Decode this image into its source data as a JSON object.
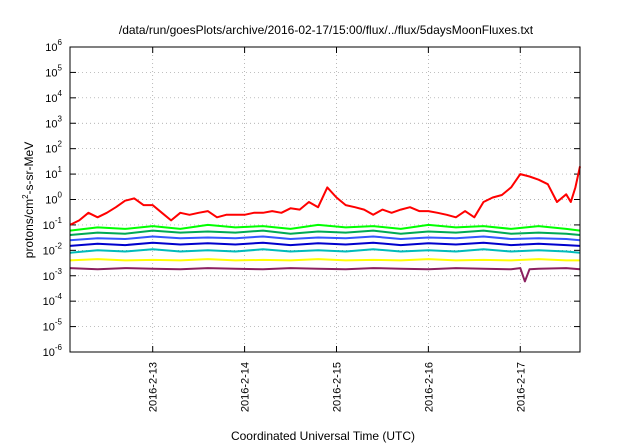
{
  "chart_data": {
    "type": "line",
    "title": "/data/run/goesPlots/archive/2016-02-17/15:00/flux/../flux/5daysMoonFluxes.txt",
    "xlabel": "Coordinated Universal Time (UTC)",
    "ylabel_parts": [
      "protons/cm",
      "2",
      "-s-sr-MeV"
    ],
    "y_scale": "log",
    "ylim": [
      1e-06,
      1000000.0
    ],
    "y_ticks": [
      {
        "base": "10",
        "exp": "-6",
        "value": 1e-06
      },
      {
        "base": "10",
        "exp": "-5",
        "value": 1e-05
      },
      {
        "base": "10",
        "exp": "-4",
        "value": 0.0001
      },
      {
        "base": "10",
        "exp": "-3",
        "value": 0.001
      },
      {
        "base": "10",
        "exp": "-2",
        "value": 0.01
      },
      {
        "base": "10",
        "exp": "-1",
        "value": 0.1
      },
      {
        "base": "10",
        "exp": "0",
        "value": 1.0
      },
      {
        "base": "10",
        "exp": "1",
        "value": 10.0
      },
      {
        "base": "10",
        "exp": "2",
        "value": 100.0
      },
      {
        "base": "10",
        "exp": "3",
        "value": 1000.0
      },
      {
        "base": "10",
        "exp": "4",
        "value": 10000.0
      },
      {
        "base": "10",
        "exp": "5",
        "value": 100000.0
      },
      {
        "base": "10",
        "exp": "6",
        "value": 1000000.0
      }
    ],
    "xlim_days": [
      -0.9,
      4.65
    ],
    "x_ticks": [
      {
        "label": "2016-2-13",
        "day": 0
      },
      {
        "label": "2016-2-14",
        "day": 1
      },
      {
        "label": "2016-2-15",
        "day": 2
      },
      {
        "label": "2016-2-16",
        "day": 3
      },
      {
        "label": "2016-2-17",
        "day": 4
      }
    ],
    "grid": true,
    "series": [
      {
        "color": "#ff0000",
        "x": [
          -0.9,
          -0.8,
          -0.7,
          -0.6,
          -0.5,
          -0.4,
          -0.3,
          -0.2,
          -0.1,
          0,
          0.1,
          0.2,
          0.3,
          0.4,
          0.5,
          0.6,
          0.7,
          0.8,
          0.9,
          1,
          1.1,
          1.2,
          1.3,
          1.4,
          1.5,
          1.6,
          1.7,
          1.8,
          1.9,
          2,
          2.1,
          2.2,
          2.3,
          2.4,
          2.5,
          2.6,
          2.7,
          2.8,
          2.9,
          3,
          3.1,
          3.2,
          3.3,
          3.4,
          3.5,
          3.6,
          3.7,
          3.8,
          3.9,
          4,
          4.1,
          4.2,
          4.3,
          4.4,
          4.5,
          4.55,
          4.6,
          4.65
        ],
        "y": [
          0.1,
          0.15,
          0.3,
          0.2,
          0.3,
          0.5,
          0.9,
          1.1,
          0.6,
          0.6,
          0.3,
          0.15,
          0.3,
          0.25,
          0.3,
          0.35,
          0.2,
          0.25,
          0.25,
          0.25,
          0.3,
          0.3,
          0.35,
          0.3,
          0.45,
          0.4,
          0.8,
          0.5,
          3,
          1.2,
          0.6,
          0.5,
          0.4,
          0.25,
          0.4,
          0.3,
          0.4,
          0.5,
          0.35,
          0.35,
          0.3,
          0.25,
          0.2,
          0.35,
          0.2,
          0.8,
          1.2,
          1.5,
          3,
          10,
          8,
          6,
          4,
          0.8,
          1.6,
          0.8,
          3,
          20
        ]
      },
      {
        "color": "#00ff00",
        "x": [
          -0.9,
          -0.6,
          -0.3,
          0,
          0.3,
          0.6,
          0.9,
          1.2,
          1.5,
          1.8,
          2.1,
          2.4,
          2.7,
          3,
          3.3,
          3.6,
          3.9,
          4.2,
          4.5,
          4.65
        ],
        "y": [
          0.06,
          0.08,
          0.07,
          0.09,
          0.07,
          0.1,
          0.08,
          0.09,
          0.07,
          0.1,
          0.08,
          0.09,
          0.07,
          0.1,
          0.08,
          0.09,
          0.07,
          0.09,
          0.07,
          0.06
        ]
      },
      {
        "color": "#00aa55",
        "x": [
          -0.9,
          -0.6,
          -0.3,
          0,
          0.3,
          0.6,
          0.9,
          1.2,
          1.5,
          1.8,
          2.1,
          2.4,
          2.7,
          3,
          3.3,
          3.6,
          3.9,
          4.2,
          4.5,
          4.65
        ],
        "y": [
          0.04,
          0.05,
          0.045,
          0.06,
          0.05,
          0.055,
          0.05,
          0.06,
          0.045,
          0.055,
          0.05,
          0.06,
          0.045,
          0.055,
          0.05,
          0.06,
          0.045,
          0.05,
          0.045,
          0.04
        ]
      },
      {
        "color": "#3355ff",
        "x": [
          -0.9,
          -0.6,
          -0.3,
          0,
          0.3,
          0.6,
          0.9,
          1.2,
          1.5,
          1.8,
          2.1,
          2.4,
          2.7,
          3,
          3.3,
          3.6,
          3.9,
          4.2,
          4.5,
          4.65
        ],
        "y": [
          0.025,
          0.03,
          0.028,
          0.035,
          0.03,
          0.032,
          0.03,
          0.035,
          0.028,
          0.032,
          0.03,
          0.035,
          0.028,
          0.032,
          0.03,
          0.035,
          0.028,
          0.03,
          0.028,
          0.025
        ]
      },
      {
        "color": "#0000cc",
        "x": [
          -0.9,
          -0.6,
          -0.3,
          0,
          0.3,
          0.6,
          0.9,
          1.2,
          1.5,
          1.8,
          2.1,
          2.4,
          2.7,
          3,
          3.3,
          3.6,
          3.9,
          4.2,
          4.5,
          4.65
        ],
        "y": [
          0.015,
          0.018,
          0.016,
          0.02,
          0.017,
          0.019,
          0.017,
          0.02,
          0.016,
          0.019,
          0.017,
          0.02,
          0.016,
          0.019,
          0.017,
          0.02,
          0.016,
          0.018,
          0.016,
          0.015
        ]
      },
      {
        "color": "#00bbbb",
        "x": [
          -0.9,
          -0.6,
          -0.3,
          0,
          0.3,
          0.6,
          0.9,
          1.2,
          1.5,
          1.8,
          2.1,
          2.4,
          2.7,
          3,
          3.3,
          3.6,
          3.9,
          4.2,
          4.5,
          4.65
        ],
        "y": [
          0.008,
          0.01,
          0.009,
          0.011,
          0.009,
          0.01,
          0.009,
          0.011,
          0.009,
          0.01,
          0.009,
          0.011,
          0.009,
          0.01,
          0.009,
          0.011,
          0.009,
          0.01,
          0.009,
          0.008
        ]
      },
      {
        "color": "#ffff00",
        "x": [
          -0.9,
          -0.6,
          -0.3,
          0,
          0.3,
          0.6,
          0.9,
          1.2,
          1.5,
          1.8,
          2.1,
          2.4,
          2.7,
          3,
          3.3,
          3.6,
          3.9,
          4.2,
          4.5,
          4.65
        ],
        "y": [
          0.004,
          0.0045,
          0.004,
          0.0042,
          0.004,
          0.0045,
          0.004,
          0.0042,
          0.004,
          0.0045,
          0.004,
          0.0042,
          0.004,
          0.0045,
          0.004,
          0.0042,
          0.004,
          0.0045,
          0.004,
          0.004
        ]
      },
      {
        "color": "#8b2060",
        "x": [
          -0.9,
          -0.6,
          -0.3,
          0,
          0.3,
          0.6,
          0.9,
          1.2,
          1.5,
          1.8,
          2.1,
          2.4,
          2.7,
          3,
          3.3,
          3.6,
          3.9,
          4.0,
          4.05,
          4.1,
          4.2,
          4.5,
          4.65
        ],
        "y": [
          0.002,
          0.0018,
          0.002,
          0.0019,
          0.0018,
          0.002,
          0.0019,
          0.0018,
          0.002,
          0.0019,
          0.0018,
          0.002,
          0.0019,
          0.0018,
          0.002,
          0.0019,
          0.0018,
          0.002,
          0.0006,
          0.0018,
          0.0019,
          0.002,
          0.0018
        ]
      }
    ]
  }
}
